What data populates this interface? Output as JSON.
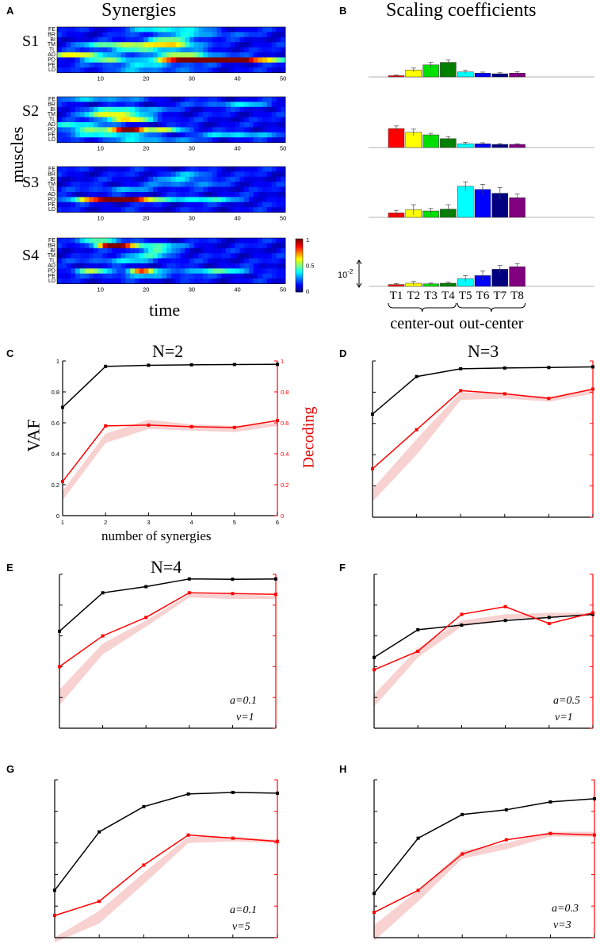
{
  "panel_labels": {
    "A": "A",
    "B": "B",
    "C": "C",
    "D": "D",
    "E": "E",
    "F": "F",
    "G": "G",
    "H": "H"
  },
  "colormap": {
    "jet": [
      "#00007f",
      "#0000ff",
      "#007fff",
      "#00ffff",
      "#7fff7f",
      "#ffff00",
      "#ff7f00",
      "#ff0000",
      "#7f0000"
    ]
  },
  "chart_data": [
    {
      "id": "A",
      "type": "heatmap",
      "title": "Synergies",
      "ylabel": "muscles",
      "xlabel": "time",
      "muscles": [
        "FE",
        "BR",
        "BI",
        "TM",
        "TL",
        "AD",
        "PD",
        "PE",
        "LD"
      ],
      "x_ticks": [
        10,
        20,
        30,
        40,
        50
      ],
      "x_range": [
        1,
        50
      ],
      "colorbar": {
        "range": [
          0,
          1
        ],
        "tick_labels": [
          "0",
          "0.5",
          "1"
        ]
      },
      "synergies": [
        {
          "name": "S1",
          "bumps": [
            [
              0,
              25,
              8,
              0.3
            ],
            [
              1,
              30,
              10,
              0.2
            ],
            [
              2,
              25,
              6,
              0.35
            ],
            [
              3,
              15,
              8,
              0.45
            ],
            [
              3,
              26,
              5,
              0.5
            ],
            [
              4,
              20,
              10,
              0.3
            ],
            [
              5,
              5,
              6,
              0.55
            ],
            [
              5,
              28,
              8,
              0.4
            ],
            [
              6,
              31,
              8,
              0.95
            ],
            [
              6,
              40,
              10,
              0.8
            ],
            [
              6,
              12,
              6,
              0.35
            ],
            [
              7,
              20,
              10,
              0.2
            ],
            [
              8,
              20,
              10,
              0.15
            ]
          ]
        },
        {
          "name": "S2",
          "bumps": [
            [
              0,
              10,
              8,
              0.2
            ],
            [
              1,
              40,
              8,
              0.2
            ],
            [
              2,
              15,
              8,
              0.3
            ],
            [
              3,
              13,
              6,
              0.55
            ],
            [
              4,
              16,
              6,
              0.5
            ],
            [
              5,
              5,
              6,
              0.3
            ],
            [
              6,
              16,
              3,
              0.95
            ],
            [
              6,
              8,
              6,
              0.35
            ],
            [
              6,
              23,
              6,
              0.4
            ],
            [
              7,
              12,
              8,
              0.3
            ],
            [
              7,
              40,
              8,
              0.25
            ],
            [
              8,
              20,
              10,
              0.2
            ]
          ]
        },
        {
          "name": "S3",
          "bumps": [
            [
              1,
              30,
              6,
              0.15
            ],
            [
              2,
              28,
              6,
              0.2
            ],
            [
              3,
              28,
              8,
              0.15
            ],
            [
              4,
              15,
              8,
              0.15
            ],
            [
              6,
              14,
              3,
              1.0
            ],
            [
              6,
              9,
              6,
              0.6
            ],
            [
              6,
              18,
              5,
              0.6
            ],
            [
              6,
              32,
              8,
              0.3
            ]
          ]
        },
        {
          "name": "S4",
          "bumps": [
            [
              0,
              10,
              4,
              0.4
            ],
            [
              1,
              13,
              4,
              1.0
            ],
            [
              1,
              22,
              5,
              0.35
            ],
            [
              2,
              22,
              4,
              0.3
            ],
            [
              3,
              20,
              6,
              0.25
            ],
            [
              4,
              15,
              8,
              0.2
            ],
            [
              6,
              19,
              3,
              0.7
            ],
            [
              6,
              8,
              4,
              0.4
            ],
            [
              6,
              35,
              8,
              0.3
            ],
            [
              7,
              20,
              10,
              0.15
            ]
          ]
        }
      ]
    },
    {
      "id": "B",
      "type": "bar",
      "title": "Scaling coefficients",
      "categories": [
        "T1",
        "T2",
        "T3",
        "T4",
        "T5",
        "T6",
        "T7",
        "T8"
      ],
      "group_labels": [
        "center-out",
        "out-center"
      ],
      "scale_bar_label": "10",
      "scale_bar_exponent": "-2",
      "bar_colors": [
        "#ff0000",
        "#ffff00",
        "#00e000",
        "#008000",
        "#00ffff",
        "#0000ff",
        "#000080",
        "#800080"
      ],
      "series": [
        {
          "name": "S1",
          "values": [
            0.1,
            0.55,
            0.95,
            1.15,
            0.4,
            0.3,
            0.25,
            0.3
          ],
          "errors": [
            0.05,
            0.15,
            0.2,
            0.18,
            0.12,
            0.08,
            0.08,
            0.12
          ]
        },
        {
          "name": "S2",
          "values": [
            1.5,
            1.2,
            1.0,
            0.7,
            0.3,
            0.3,
            0.25,
            0.25
          ],
          "errors": [
            0.2,
            0.25,
            0.12,
            0.15,
            0.1,
            0.08,
            0.06,
            0.05
          ]
        },
        {
          "name": "S3",
          "values": [
            0.35,
            0.6,
            0.5,
            0.65,
            2.45,
            2.2,
            1.9,
            1.55
          ],
          "errors": [
            0.2,
            0.4,
            0.2,
            0.35,
            0.35,
            0.4,
            0.45,
            0.3
          ]
        },
        {
          "name": "S4",
          "values": [
            0.15,
            0.25,
            0.2,
            0.25,
            0.6,
            0.85,
            1.35,
            1.55
          ],
          "errors": [
            0.08,
            0.15,
            0.06,
            0.08,
            0.25,
            0.35,
            0.3,
            0.25
          ]
        }
      ]
    },
    {
      "id": "C",
      "type": "line",
      "title": "N=2",
      "xlabel": "number of synergies",
      "ylabel_left": "VAF",
      "ylabel_right": "Decoding",
      "x": [
        1,
        2,
        3,
        4,
        5,
        6
      ],
      "xlim": [
        1,
        6
      ],
      "ylim": [
        0,
        1
      ],
      "x_tick_labels": [
        "1",
        "2",
        "3",
        "4",
        "5",
        "6"
      ],
      "y_tick_values": [
        0,
        0.2,
        0.4,
        0.6,
        0.8,
        1
      ],
      "y_tick_labels": [
        "0",
        "0.2",
        "0.4",
        "0.6",
        "0.8",
        "1"
      ],
      "show_tick_labels": true,
      "series": [
        {
          "name": "VAF",
          "color": "#000000",
          "values": [
            0.7,
            0.965,
            0.972,
            0.975,
            0.977,
            0.978
          ]
        },
        {
          "name": "Decoding",
          "color": "#ff0000",
          "values": [
            0.22,
            0.58,
            0.585,
            0.575,
            0.57,
            0.615
          ]
        },
        {
          "name": "Decoding band",
          "color": "#f5c2c2",
          "lower": [
            0.1,
            0.47,
            0.56,
            0.55,
            0.54,
            0.58
          ],
          "upper": [
            0.16,
            0.53,
            0.62,
            0.59,
            0.58,
            0.6
          ]
        }
      ]
    },
    {
      "id": "D",
      "type": "line",
      "title": "N=3",
      "x": [
        1,
        2,
        3,
        4,
        5,
        6
      ],
      "xlim": [
        1,
        6
      ],
      "ylim": [
        0,
        1
      ],
      "y_tick_values": [
        0,
        0.2,
        0.4,
        0.6,
        0.8,
        1
      ],
      "show_tick_labels": false,
      "series": [
        {
          "name": "VAF",
          "color": "#000000",
          "values": [
            0.66,
            0.9,
            0.95,
            0.955,
            0.958,
            0.962
          ]
        },
        {
          "name": "Decoding",
          "color": "#ff0000",
          "values": [
            0.31,
            0.56,
            0.81,
            0.79,
            0.76,
            0.82
          ]
        },
        {
          "name": "Decoding band",
          "color": "#f5c2c2",
          "lower": [
            0.1,
            0.4,
            0.75,
            0.76,
            0.74,
            0.79
          ],
          "upper": [
            0.18,
            0.5,
            0.8,
            0.79,
            0.77,
            0.82
          ]
        }
      ]
    },
    {
      "id": "E",
      "type": "line",
      "title": "N=4",
      "annotation_a": "a=0.1",
      "annotation_v": "v=1",
      "x": [
        1,
        2,
        3,
        4,
        5,
        6
      ],
      "xlim": [
        1,
        6
      ],
      "ylim": [
        0,
        1
      ],
      "y_tick_values": [
        0,
        0.2,
        0.4,
        0.6,
        0.8,
        1
      ],
      "show_tick_labels": false,
      "series": [
        {
          "name": "VAF",
          "color": "#000000",
          "values": [
            0.63,
            0.88,
            0.92,
            0.97,
            0.968,
            0.97
          ]
        },
        {
          "name": "Decoding",
          "color": "#ff0000",
          "values": [
            0.4,
            0.6,
            0.72,
            0.88,
            0.875,
            0.87
          ]
        },
        {
          "name": "Decoding band",
          "color": "#f5c2c2",
          "lower": [
            0.15,
            0.48,
            0.66,
            0.85,
            0.84,
            0.84
          ],
          "upper": [
            0.25,
            0.55,
            0.7,
            0.87,
            0.87,
            0.86
          ]
        }
      ]
    },
    {
      "id": "F",
      "type": "line",
      "annotation_a": "a=0.5",
      "annotation_v": "v=1",
      "x": [
        1,
        2,
        3,
        4,
        5,
        6
      ],
      "xlim": [
        1,
        6
      ],
      "ylim": [
        0,
        1
      ],
      "y_tick_values": [
        0,
        0.2,
        0.4,
        0.6,
        0.8,
        1
      ],
      "show_tick_labels": false,
      "series": [
        {
          "name": "VAF",
          "color": "#000000",
          "values": [
            0.46,
            0.64,
            0.67,
            0.7,
            0.72,
            0.74
          ]
        },
        {
          "name": "Decoding",
          "color": "#ff0000",
          "values": [
            0.38,
            0.5,
            0.74,
            0.79,
            0.68,
            0.75
          ]
        },
        {
          "name": "Decoding band",
          "color": "#f5c2c2",
          "lower": [
            0.14,
            0.46,
            0.66,
            0.71,
            0.72,
            0.73
          ],
          "upper": [
            0.22,
            0.52,
            0.7,
            0.74,
            0.75,
            0.75
          ]
        }
      ]
    },
    {
      "id": "G",
      "type": "line",
      "annotation_a": "a=0.1",
      "annotation_v": "v=5",
      "x": [
        1,
        2,
        3,
        4,
        5,
        6
      ],
      "xlim": [
        1,
        6
      ],
      "ylim": [
        0,
        1
      ],
      "y_tick_values": [
        0,
        0.2,
        0.4,
        0.6,
        0.8,
        1
      ],
      "show_tick_labels": false,
      "series": [
        {
          "name": "VAF",
          "color": "#000000",
          "values": [
            0.3,
            0.67,
            0.83,
            0.91,
            0.92,
            0.915
          ]
        },
        {
          "name": "Decoding",
          "color": "#ff0000",
          "values": [
            0.14,
            0.23,
            0.46,
            0.65,
            0.63,
            0.61
          ]
        },
        {
          "name": "Decoding band",
          "color": "#f5c2c2",
          "lower": [
            -0.1,
            0.09,
            0.34,
            0.6,
            0.61,
            0.6
          ],
          "upper": [
            0,
            0.17,
            0.41,
            0.64,
            0.64,
            0.62
          ]
        }
      ]
    },
    {
      "id": "H",
      "type": "line",
      "annotation_a": "a=0.3",
      "annotation_v": "v=3",
      "x": [
        1,
        2,
        3,
        4,
        5,
        6
      ],
      "xlim": [
        1,
        6
      ],
      "ylim": [
        0,
        1
      ],
      "y_tick_values": [
        0,
        0.2,
        0.4,
        0.6,
        0.8,
        1
      ],
      "show_tick_labels": false,
      "series": [
        {
          "name": "VAF",
          "color": "#000000",
          "values": [
            0.28,
            0.63,
            0.78,
            0.81,
            0.86,
            0.88
          ]
        },
        {
          "name": "Decoding",
          "color": "#ff0000",
          "values": [
            0.16,
            0.3,
            0.53,
            0.62,
            0.66,
            0.65
          ]
        },
        {
          "name": "Decoding band",
          "color": "#f5c2c2",
          "lower": [
            -0.02,
            0.23,
            0.5,
            0.56,
            0.64,
            0.64
          ],
          "upper": [
            0.08,
            0.3,
            0.55,
            0.6,
            0.67,
            0.67
          ]
        }
      ]
    }
  ]
}
